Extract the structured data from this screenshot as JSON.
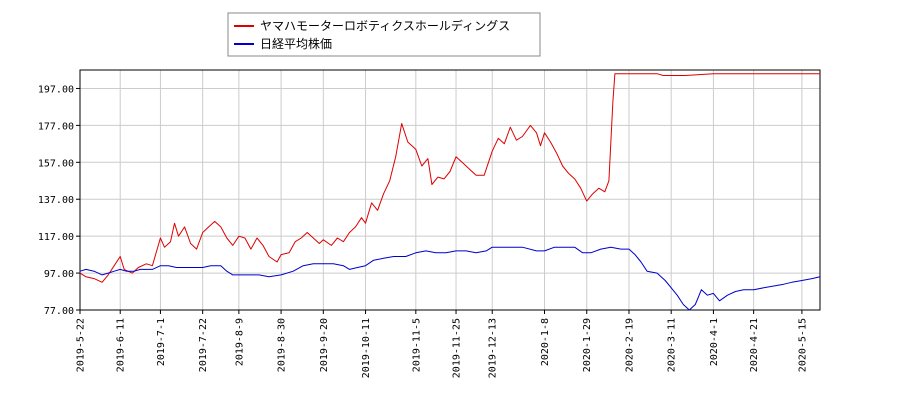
{
  "chart_data": {
    "type": "line",
    "title": "",
    "xlabel": "",
    "ylabel": "",
    "ylim": [
      77.0,
      207.0
    ],
    "xlim": [
      "2019-05-22",
      "2020-05-24"
    ],
    "yticks": [
      77.0,
      97.0,
      117.0,
      137.0,
      157.0,
      177.0,
      197.0
    ],
    "ytick_labels": [
      "77.00",
      "97.00",
      "117.00",
      "137.00",
      "157.00",
      "177.00",
      "197.00"
    ],
    "xticks": [
      "2019-5-22",
      "2019-6-11",
      "2019-7-1",
      "2019-7-22",
      "2019-8-9",
      "2019-8-30",
      "2019-9-20",
      "2019-10-11",
      "2019-11-5",
      "2019-11-25",
      "2019-12-13",
      "2020-1-8",
      "2020-1-29",
      "2020-2-19",
      "2020-3-11",
      "2020-4-1",
      "2020-4-21",
      "2020-5-15"
    ],
    "grid": true,
    "legend_position": "top-left",
    "series": [
      {
        "name": "ヤマハモーターロボティクスホールディングス",
        "color": "#dd0000",
        "points": [
          [
            "2019-05-22",
            97
          ],
          [
            "2019-05-25",
            95
          ],
          [
            "2019-05-29",
            94
          ],
          [
            "2019-06-02",
            92
          ],
          [
            "2019-06-05",
            96
          ],
          [
            "2019-06-08",
            101
          ],
          [
            "2019-06-11",
            106
          ],
          [
            "2019-06-13",
            99
          ],
          [
            "2019-06-17",
            97
          ],
          [
            "2019-06-20",
            100
          ],
          [
            "2019-06-24",
            102
          ],
          [
            "2019-06-27",
            101
          ],
          [
            "2019-07-01",
            116
          ],
          [
            "2019-07-03",
            111
          ],
          [
            "2019-07-06",
            114
          ],
          [
            "2019-07-08",
            124
          ],
          [
            "2019-07-10",
            117
          ],
          [
            "2019-07-13",
            122
          ],
          [
            "2019-07-16",
            113
          ],
          [
            "2019-07-19",
            110
          ],
          [
            "2019-07-22",
            119
          ],
          [
            "2019-07-25",
            122
          ],
          [
            "2019-07-28",
            125
          ],
          [
            "2019-07-31",
            122
          ],
          [
            "2019-08-03",
            116
          ],
          [
            "2019-08-06",
            112
          ],
          [
            "2019-08-09",
            117
          ],
          [
            "2019-08-12",
            116
          ],
          [
            "2019-08-15",
            110
          ],
          [
            "2019-08-18",
            116
          ],
          [
            "2019-08-21",
            112
          ],
          [
            "2019-08-24",
            106
          ],
          [
            "2019-08-28",
            103
          ],
          [
            "2019-08-30",
            107
          ],
          [
            "2019-09-03",
            108
          ],
          [
            "2019-09-06",
            114
          ],
          [
            "2019-09-09",
            116
          ],
          [
            "2019-09-12",
            119
          ],
          [
            "2019-09-15",
            116
          ],
          [
            "2019-09-18",
            113
          ],
          [
            "2019-09-20",
            115
          ],
          [
            "2019-09-24",
            112
          ],
          [
            "2019-09-27",
            116
          ],
          [
            "2019-09-30",
            114
          ],
          [
            "2019-10-03",
            119
          ],
          [
            "2019-10-06",
            122
          ],
          [
            "2019-10-09",
            127
          ],
          [
            "2019-10-11",
            124
          ],
          [
            "2019-10-14",
            135
          ],
          [
            "2019-10-17",
            131
          ],
          [
            "2019-10-20",
            140
          ],
          [
            "2019-10-23",
            147
          ],
          [
            "2019-10-26",
            160
          ],
          [
            "2019-10-29",
            178
          ],
          [
            "2019-11-01",
            168
          ],
          [
            "2019-11-05",
            164
          ],
          [
            "2019-11-08",
            155
          ],
          [
            "2019-11-11",
            159
          ],
          [
            "2019-11-13",
            145
          ],
          [
            "2019-11-16",
            149
          ],
          [
            "2019-11-19",
            148
          ],
          [
            "2019-11-22",
            152
          ],
          [
            "2019-11-25",
            160
          ],
          [
            "2019-11-28",
            157
          ],
          [
            "2019-12-02",
            153
          ],
          [
            "2019-12-05",
            150
          ],
          [
            "2019-12-09",
            150
          ],
          [
            "2019-12-13",
            163
          ],
          [
            "2019-12-16",
            170
          ],
          [
            "2019-12-19",
            167
          ],
          [
            "2019-12-22",
            176
          ],
          [
            "2019-12-25",
            169
          ],
          [
            "2019-12-28",
            171
          ],
          [
            "2020-01-01",
            177
          ],
          [
            "2020-01-04",
            173
          ],
          [
            "2020-01-06",
            166
          ],
          [
            "2020-01-08",
            173
          ],
          [
            "2020-01-11",
            168
          ],
          [
            "2020-01-14",
            162
          ],
          [
            "2020-01-17",
            155
          ],
          [
            "2020-01-20",
            151
          ],
          [
            "2020-01-23",
            148
          ],
          [
            "2020-01-26",
            143
          ],
          [
            "2020-01-29",
            136
          ],
          [
            "2020-02-01",
            140
          ],
          [
            "2020-02-04",
            143
          ],
          [
            "2020-02-07",
            141
          ],
          [
            "2020-02-09",
            147
          ],
          [
            "2020-02-11",
            190
          ],
          [
            "2020-02-12",
            205
          ],
          [
            "2020-02-19",
            205
          ],
          [
            "2020-02-26",
            205
          ],
          [
            "2020-03-04",
            205
          ],
          [
            "2020-03-07",
            204
          ],
          [
            "2020-03-11",
            204
          ],
          [
            "2020-03-18",
            204
          ],
          [
            "2020-04-01",
            205
          ],
          [
            "2020-04-21",
            205
          ],
          [
            "2020-05-15",
            205
          ],
          [
            "2020-05-24",
            205
          ]
        ]
      },
      {
        "name": "日経平均株価",
        "color": "#0000cc",
        "points": [
          [
            "2019-05-22",
            98
          ],
          [
            "2019-05-25",
            99
          ],
          [
            "2019-05-29",
            98
          ],
          [
            "2019-06-02",
            96
          ],
          [
            "2019-06-05",
            97
          ],
          [
            "2019-06-08",
            98
          ],
          [
            "2019-06-11",
            99
          ],
          [
            "2019-06-14",
            98
          ],
          [
            "2019-06-18",
            98
          ],
          [
            "2019-06-21",
            99
          ],
          [
            "2019-06-24",
            99
          ],
          [
            "2019-06-27",
            99
          ],
          [
            "2019-07-01",
            101
          ],
          [
            "2019-07-05",
            101
          ],
          [
            "2019-07-09",
            100
          ],
          [
            "2019-07-13",
            100
          ],
          [
            "2019-07-17",
            100
          ],
          [
            "2019-07-22",
            100
          ],
          [
            "2019-07-26",
            101
          ],
          [
            "2019-07-31",
            101
          ],
          [
            "2019-08-03",
            98
          ],
          [
            "2019-08-06",
            96
          ],
          [
            "2019-08-09",
            96
          ],
          [
            "2019-08-14",
            96
          ],
          [
            "2019-08-19",
            96
          ],
          [
            "2019-08-24",
            95
          ],
          [
            "2019-08-30",
            96
          ],
          [
            "2019-09-05",
            98
          ],
          [
            "2019-09-10",
            101
          ],
          [
            "2019-09-15",
            102
          ],
          [
            "2019-09-20",
            102
          ],
          [
            "2019-09-25",
            102
          ],
          [
            "2019-09-30",
            101
          ],
          [
            "2019-10-03",
            99
          ],
          [
            "2019-10-07",
            100
          ],
          [
            "2019-10-11",
            101
          ],
          [
            "2019-10-15",
            104
          ],
          [
            "2019-10-20",
            105
          ],
          [
            "2019-10-25",
            106
          ],
          [
            "2019-10-31",
            106
          ],
          [
            "2019-11-05",
            108
          ],
          [
            "2019-11-10",
            109
          ],
          [
            "2019-11-15",
            108
          ],
          [
            "2019-11-20",
            108
          ],
          [
            "2019-11-25",
            109
          ],
          [
            "2019-11-30",
            109
          ],
          [
            "2019-12-05",
            108
          ],
          [
            "2019-12-10",
            109
          ],
          [
            "2019-12-13",
            111
          ],
          [
            "2019-12-18",
            111
          ],
          [
            "2019-12-23",
            111
          ],
          [
            "2019-12-28",
            111
          ],
          [
            "2020-01-04",
            109
          ],
          [
            "2020-01-08",
            109
          ],
          [
            "2020-01-13",
            111
          ],
          [
            "2020-01-18",
            111
          ],
          [
            "2020-01-23",
            111
          ],
          [
            "2020-01-27",
            108
          ],
          [
            "2020-01-31",
            108
          ],
          [
            "2020-02-05",
            110
          ],
          [
            "2020-02-10",
            111
          ],
          [
            "2020-02-15",
            110
          ],
          [
            "2020-02-19",
            110
          ],
          [
            "2020-02-22",
            107
          ],
          [
            "2020-02-25",
            103
          ],
          [
            "2020-02-28",
            98
          ],
          [
            "2020-03-04",
            97
          ],
          [
            "2020-03-08",
            93
          ],
          [
            "2020-03-11",
            89
          ],
          [
            "2020-03-14",
            85
          ],
          [
            "2020-03-17",
            80
          ],
          [
            "2020-03-20",
            77
          ],
          [
            "2020-03-23",
            80
          ],
          [
            "2020-03-26",
            88
          ],
          [
            "2020-03-29",
            85
          ],
          [
            "2020-04-01",
            86
          ],
          [
            "2020-04-04",
            82
          ],
          [
            "2020-04-08",
            85
          ],
          [
            "2020-04-12",
            87
          ],
          [
            "2020-04-16",
            88
          ],
          [
            "2020-04-21",
            88
          ],
          [
            "2020-04-26",
            89
          ],
          [
            "2020-05-01",
            90
          ],
          [
            "2020-05-06",
            91
          ],
          [
            "2020-05-10",
            92
          ],
          [
            "2020-05-15",
            93
          ],
          [
            "2020-05-20",
            94
          ],
          [
            "2020-05-24",
            95
          ]
        ]
      }
    ]
  }
}
